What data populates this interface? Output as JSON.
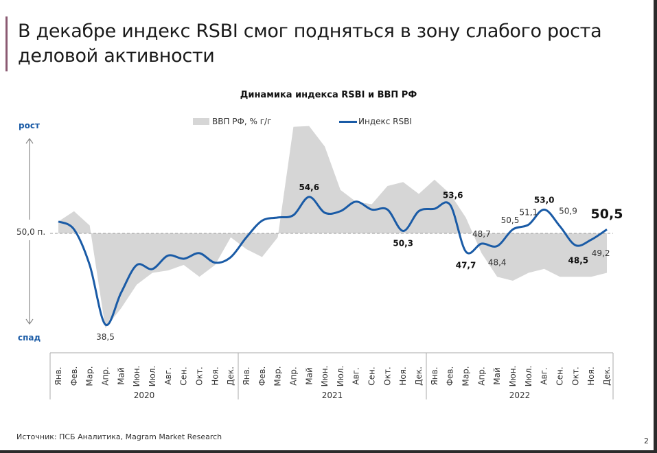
{
  "slide": {
    "title": "В декабре индекс RSBI смог подняться в зону слабого роста деловой активности",
    "source": "Источник: ПСБ Аналитика, Magram Market Research",
    "page_number": "2"
  },
  "chart": {
    "title": "Динамика индекса RSBI и ВВП РФ",
    "legend": {
      "area": "ВВП РФ, % г/г",
      "line": "Индекс RSBI"
    },
    "axis_up": "рост",
    "axis_down": "спад",
    "reference_label": "50,0 п."
  },
  "colors": {
    "line": "#1a5ba6",
    "area": "#d6d6d6",
    "accent": "#8b5a72"
  },
  "chart_data": {
    "type": "line",
    "title": "Динамика индекса RSBI и ВВП РФ",
    "xlabel": "",
    "ylabel": "",
    "reference_line": 50.0,
    "legend_position": "top",
    "years": [
      "2020",
      "2021",
      "2022"
    ],
    "months": [
      "Янв.",
      "Фев.",
      "Мар.",
      "Апр.",
      "Май",
      "Июн.",
      "Июл.",
      "Авг.",
      "Сен.",
      "Окт.",
      "Ноя.",
      "Дек."
    ],
    "categories": [
      "Янв. 2020",
      "Фев. 2020",
      "Мар. 2020",
      "Апр. 2020",
      "Май 2020",
      "Июн. 2020",
      "Июл. 2020",
      "Авг. 2020",
      "Сен. 2020",
      "Окт. 2020",
      "Ноя. 2020",
      "Дек. 2020",
      "Янв. 2021",
      "Фев. 2021",
      "Мар. 2021",
      "Апр. 2021",
      "Май 2021",
      "Июн. 2021",
      "Июл. 2021",
      "Авг. 2021",
      "Сен. 2021",
      "Окт. 2021",
      "Ноя. 2021",
      "Дек. 2021",
      "Янв. 2022",
      "Фев. 2022",
      "Мар. 2022",
      "Апр. 2022",
      "Май 2022",
      "Июн. 2022",
      "Июл. 2022",
      "Авг. 2022",
      "Сен. 2022",
      "Окт. 2022",
      "Ноя. 2022",
      "Дек. 2022"
    ],
    "series": [
      {
        "name": "Индекс RSBI",
        "type": "line",
        "values": [
          51.5,
          50.5,
          46.0,
          38.5,
          42.5,
          46.0,
          45.5,
          47.2,
          46.8,
          47.5,
          46.3,
          47.0,
          49.5,
          51.6,
          52.0,
          52.3,
          54.6,
          52.6,
          52.8,
          54.0,
          53.0,
          53.0,
          50.3,
          52.8,
          53.1,
          53.6,
          47.7,
          48.7,
          48.4,
          50.5,
          51.1,
          53.0,
          50.9,
          48.5,
          49.2,
          50.5
        ],
        "labels": {
          "Апр. 2020": "38,5",
          "Май 2021": "54,6",
          "Ноя. 2021": "50,3",
          "Фев. 2022": "53,6",
          "Мар. 2022": "47,7",
          "Апр. 2022": "48,7",
          "Май 2022": "48,4",
          "Июн. 2022": "50,5",
          "Июл. 2022": "51,1",
          "Авг. 2022": "53,0",
          "Сен. 2022": "50,9",
          "Окт. 2022": "48,5",
          "Ноя. 2022": "49,2",
          "Дек. 2022": "50,5"
        }
      },
      {
        "name": "ВВП РФ, % г/г",
        "type": "area",
        "note": "relative shape, unscaled (no axis shown)",
        "values": [
          1.5,
          2.8,
          1.0,
          -12.0,
          -9.5,
          -6.5,
          -5.0,
          -4.7,
          -4.0,
          -5.5,
          -4.0,
          -0.5,
          -2.0,
          -3.0,
          -0.5,
          13.5,
          13.6,
          11.0,
          5.5,
          4.0,
          3.7,
          6.0,
          6.5,
          5.0,
          6.8,
          5.0,
          2.0,
          -2.5,
          -5.5,
          -6.0,
          -5.0,
          -4.5,
          -5.5,
          -5.5,
          -5.5,
          -5.0
        ]
      }
    ]
  }
}
